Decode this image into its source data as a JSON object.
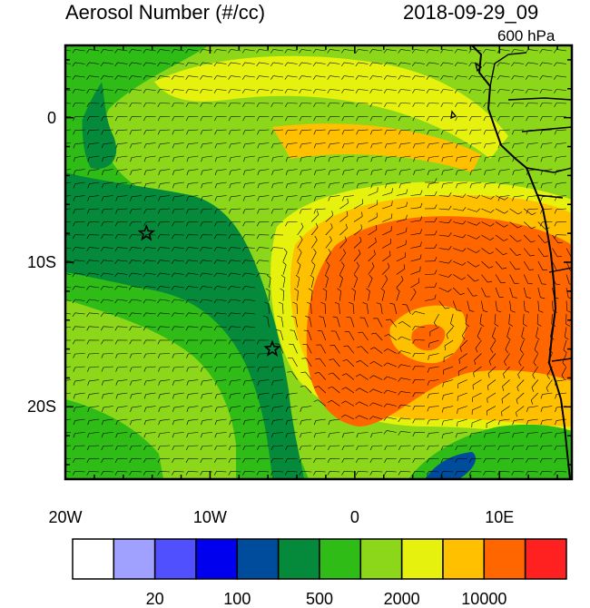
{
  "title": "Aerosol Number (#/cc)",
  "time": "2018-09-29_09",
  "level": "600 hPa",
  "lat_ticks": [
    {
      "label": "0",
      "lat": 0
    },
    {
      "label": "10S",
      "lat": -10
    },
    {
      "label": "20S",
      "lat": -20
    }
  ],
  "lon_ticks": [
    {
      "label": "20W",
      "lon": -20
    },
    {
      "label": "10W",
      "lon": -10
    },
    {
      "label": "0",
      "lon": 0
    },
    {
      "label": "10E",
      "lon": 10
    }
  ],
  "map_extent": {
    "lon_min": -20,
    "lon_max": 15,
    "lat_min": -25,
    "lat_max": 5
  },
  "colorbar": {
    "colors": [
      "#ffffff",
      "#a0a0ff",
      "#5050ff",
      "#0000ee",
      "#004c9c",
      "#058a3c",
      "#2fbc16",
      "#8cd719",
      "#e6f20d",
      "#ffc000",
      "#ff6600",
      "#ff2020"
    ],
    "labels": [
      {
        "text": "20",
        "boundary": 2
      },
      {
        "text": "100",
        "boundary": 4
      },
      {
        "text": "500",
        "boundary": 6
      },
      {
        "text": "2000",
        "boundary": 8
      },
      {
        "text": "10000",
        "boundary": 10
      }
    ]
  },
  "markers": [
    {
      "name": "star",
      "lon": -14.4,
      "lat": -8.0
    },
    {
      "name": "star",
      "lon": -5.7,
      "lat": -16.0
    }
  ]
}
